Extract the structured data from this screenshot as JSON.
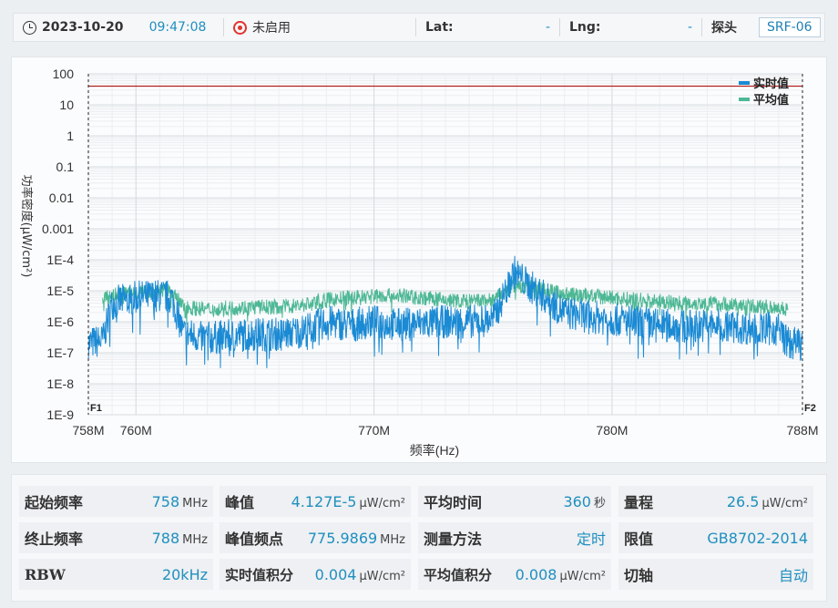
{
  "topbar": {
    "date": "2023-10-20",
    "time": "09:47:08",
    "gps_status": "未启用",
    "lat_label": "Lat:",
    "lat_value": "-",
    "lng_label": "Lng:",
    "lng_value": "-",
    "probe_label": "探头",
    "probe_value": "SRF-06"
  },
  "colors": {
    "realtime": "#1a8ad4",
    "average": "#4db894",
    "limit_line": "#b22222",
    "accent": "#1f8fbf"
  },
  "chart_data": {
    "type": "line",
    "xlabel": "频率(Hz)",
    "ylabel": "功率密度(μW/cm²)",
    "y_scale": "log",
    "xlim": [
      758,
      788
    ],
    "ylim": [
      1e-09,
      100
    ],
    "x_ticks": [
      "758M",
      "760M",
      "770M",
      "780M",
      "788M"
    ],
    "y_ticks": [
      "1E-9",
      "1E-8",
      "1E-7",
      "1E-6",
      "1E-5",
      "1E-4",
      "0.001",
      "0.01",
      "0.1",
      "1",
      "10",
      "100"
    ],
    "limit_value": 40,
    "markers": [
      "F1",
      "F2"
    ],
    "legend_position": "top-right",
    "series": [
      {
        "name": "实时值",
        "x": [
          758.0,
          758.6,
          759.0,
          759.5,
          760.0,
          761.0,
          761.5,
          762.0,
          763.0,
          764.0,
          765.0,
          766.0,
          767.0,
          768.0,
          769.0,
          770.0,
          771.0,
          772.0,
          773.0,
          774.0,
          775.0,
          775.9,
          776.5,
          777.0,
          778.0,
          779.0,
          780.0,
          781.0,
          782.0,
          783.0,
          784.0,
          785.0,
          786.0,
          787.0,
          787.4,
          788.0
        ],
        "values": [
          2e-07,
          2.5e-07,
          4e-06,
          5e-06,
          6e-06,
          7e-06,
          6e-06,
          4e-07,
          3e-07,
          3.5e-07,
          4e-07,
          4e-07,
          5e-07,
          1e-06,
          8e-07,
          1e-06,
          8e-07,
          9e-07,
          1e-06,
          1e-06,
          1.2e-06,
          4.127e-05,
          1.5e-05,
          8e-06,
          2e-06,
          1.5e-06,
          1.2e-06,
          1e-06,
          8e-07,
          7e-07,
          8e-07,
          7e-07,
          6e-07,
          6e-07,
          2e-07,
          2e-07
        ]
      },
      {
        "name": "平均值",
        "x": [
          758.6,
          759.0,
          760.0,
          761.0,
          761.5,
          762.0,
          763.0,
          764.0,
          765.0,
          766.0,
          767.0,
          768.0,
          769.0,
          770.0,
          771.0,
          772.0,
          773.0,
          774.0,
          775.0,
          775.9,
          777.0,
          778.0,
          779.0,
          780.0,
          781.0,
          782.0,
          783.0,
          784.0,
          785.0,
          786.0,
          787.0,
          787.4
        ],
        "values": [
          5e-06,
          7e-06,
          9e-06,
          1e-05,
          9e-06,
          3e-06,
          2.5e-06,
          2.8e-06,
          3e-06,
          3e-06,
          3.5e-06,
          5e-06,
          6e-06,
          7e-06,
          7e-06,
          6e-06,
          5e-06,
          4.5e-06,
          5e-06,
          1.5e-05,
          1.2e-05,
          8e-06,
          7e-06,
          6e-06,
          5e-06,
          4.5e-06,
          4e-06,
          4e-06,
          3.5e-06,
          3e-06,
          3e-06,
          2.5e-06
        ]
      }
    ]
  },
  "info": {
    "start_freq": {
      "label": "起始频率",
      "value": "758",
      "unit": "MHz"
    },
    "peak": {
      "label": "峰值",
      "value": "4.127E-5",
      "unit": "μW/cm²"
    },
    "avg_time": {
      "label": "平均时间",
      "value": "360",
      "unit": "秒"
    },
    "range": {
      "label": "量程",
      "value": "26.5",
      "unit": "μW/cm²"
    },
    "stop_freq": {
      "label": "终止频率",
      "value": "788",
      "unit": "MHz"
    },
    "peak_freq": {
      "label": "峰值频点",
      "value": "775.9869",
      "unit": "MHz"
    },
    "method": {
      "label": "测量方法",
      "value": "定时"
    },
    "limit": {
      "label": "限值",
      "value": "GB8702-2014"
    },
    "rbw": {
      "label": "RBW",
      "value": "20kHz"
    },
    "rt_integral": {
      "label": "实时值积分",
      "value": "0.004",
      "unit": "μW/cm²"
    },
    "avg_integral": {
      "label": "平均值积分",
      "value": "0.008",
      "unit": "μW/cm²"
    },
    "axis_switch": {
      "label": "切轴",
      "value": "自动"
    }
  }
}
